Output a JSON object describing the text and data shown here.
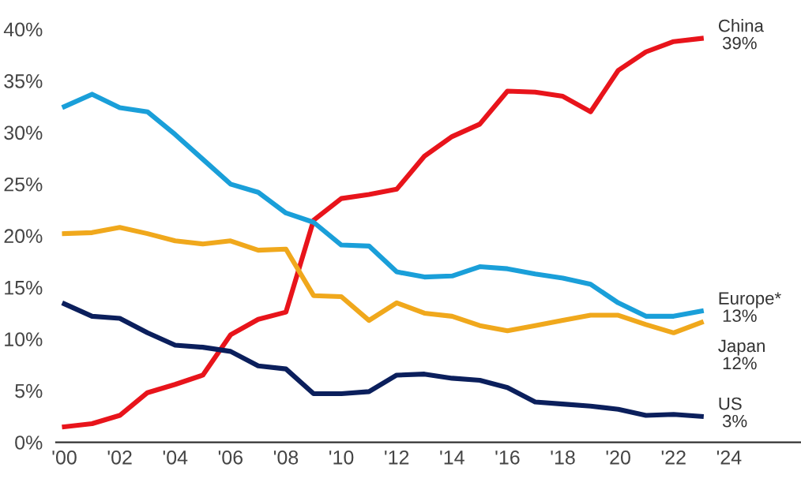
{
  "chart_data": {
    "type": "line",
    "x": [
      2000,
      2001,
      2002,
      2003,
      2004,
      2005,
      2006,
      2007,
      2008,
      2009,
      2010,
      2011,
      2012,
      2013,
      2014,
      2015,
      2016,
      2017,
      2018,
      2019,
      2020,
      2021,
      2022,
      2023
    ],
    "series": [
      {
        "name": "China",
        "color": "#e8141b",
        "values": [
          1.5,
          1.8,
          2.6,
          4.8,
          5.6,
          6.5,
          10.4,
          11.9,
          12.6,
          21.5,
          23.6,
          24.0,
          24.5,
          27.7,
          29.6,
          30.8,
          34.0,
          33.9,
          33.5,
          32.0,
          36.0,
          37.8,
          38.8,
          39.1
        ],
        "value_labels": [
          null,
          null,
          null,
          null,
          null,
          null,
          null,
          null,
          null,
          null,
          null,
          null,
          null,
          null,
          null,
          null,
          null,
          null,
          null,
          null,
          null,
          null,
          null,
          "39%"
        ]
      },
      {
        "name": "Europe*",
        "color": "#1a9fd9",
        "values": [
          32.5,
          33.7,
          32.4,
          32.0,
          29.8,
          27.4,
          25.0,
          24.2,
          22.2,
          21.3,
          19.1,
          19.0,
          16.5,
          16.0,
          16.1,
          17.0,
          16.8,
          16.3,
          15.9,
          15.3,
          13.5,
          12.2,
          12.2,
          12.7
        ],
        "value_labels": [
          null,
          null,
          null,
          null,
          null,
          null,
          null,
          null,
          null,
          null,
          null,
          null,
          null,
          null,
          null,
          null,
          null,
          null,
          null,
          null,
          null,
          null,
          null,
          "13%"
        ]
      },
      {
        "name": "Japan",
        "color": "#f0a81c",
        "values": [
          20.2,
          20.3,
          20.8,
          20.2,
          19.5,
          19.2,
          19.5,
          18.6,
          18.7,
          14.2,
          14.1,
          11.8,
          13.5,
          12.5,
          12.2,
          11.3,
          10.8,
          11.3,
          11.8,
          12.3,
          12.3,
          11.4,
          10.6,
          11.6
        ],
        "value_labels": [
          null,
          null,
          null,
          null,
          null,
          null,
          null,
          null,
          null,
          null,
          null,
          null,
          null,
          null,
          null,
          null,
          null,
          null,
          null,
          null,
          null,
          null,
          null,
          "12%"
        ]
      },
      {
        "name": "US",
        "color": "#0b1f5c",
        "values": [
          13.4,
          12.2,
          12.0,
          10.6,
          9.4,
          9.2,
          8.8,
          7.4,
          7.1,
          4.7,
          4.7,
          4.9,
          6.5,
          6.6,
          6.2,
          6.0,
          5.3,
          3.9,
          3.7,
          3.5,
          3.2,
          2.6,
          2.7,
          2.5
        ],
        "value_labels": [
          null,
          null,
          null,
          null,
          null,
          null,
          null,
          null,
          null,
          null,
          null,
          null,
          null,
          null,
          null,
          null,
          null,
          null,
          null,
          null,
          null,
          null,
          null,
          "3%"
        ]
      }
    ],
    "xlim": [
      1999.7,
      2026.6
    ],
    "xticks": [
      {
        "value": 2000,
        "label": "'00"
      },
      {
        "value": 2002,
        "label": "'02"
      },
      {
        "value": 2004,
        "label": "'04"
      },
      {
        "value": 2006,
        "label": "'06"
      },
      {
        "value": 2008,
        "label": "'08"
      },
      {
        "value": 2010,
        "label": "'10"
      },
      {
        "value": 2012,
        "label": "'12"
      },
      {
        "value": 2014,
        "label": "'14"
      },
      {
        "value": 2016,
        "label": "'16"
      },
      {
        "value": 2018,
        "label": "'18"
      },
      {
        "value": 2020,
        "label": "'20"
      },
      {
        "value": 2022,
        "label": "'22"
      },
      {
        "value": 2024,
        "label": "'24"
      }
    ],
    "ylim": [
      0,
      40
    ],
    "yticks": [
      {
        "value": 0,
        "label": "0%"
      },
      {
        "value": 5,
        "label": "5%"
      },
      {
        "value": 10,
        "label": "10%"
      },
      {
        "value": 15,
        "label": "15%"
      },
      {
        "value": 20,
        "label": "20%"
      },
      {
        "value": 25,
        "label": "25%"
      },
      {
        "value": 30,
        "label": "30%"
      },
      {
        "value": 35,
        "label": "35%"
      },
      {
        "value": 40,
        "label": "40%"
      }
    ],
    "grid": false,
    "legend": false,
    "marker": "none",
    "line_style": "solid"
  }
}
